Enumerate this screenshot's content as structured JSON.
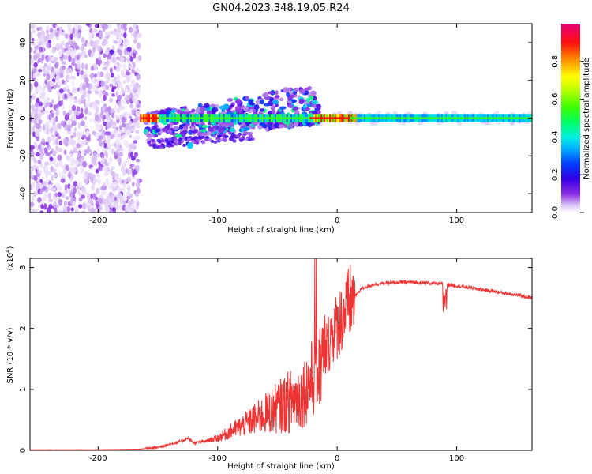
{
  "title": "GN04.2023.348.19.05.R24",
  "chart_data": [
    {
      "type": "heatmap",
      "title": "GN04.2023.348.19.05.R24",
      "xlabel": "Height of straight line (km)",
      "ylabel": "Frequency (Hz)",
      "xlim": [
        -257,
        163
      ],
      "ylim": [
        -50,
        50
      ],
      "x_ticks": [
        -200,
        -100,
        0,
        100
      ],
      "y_ticks": [
        -40,
        -20,
        0,
        20,
        40
      ],
      "grid": false,
      "colorbar": {
        "label": "Normalized spectral amplitude",
        "range": [
          0,
          1
        ],
        "ticks": [
          "0.0",
          "0.2",
          "0.4",
          "0.6",
          "0.8"
        ],
        "colormap": [
          "#ffffff",
          "#c9a6f0",
          "#8a2be2",
          "#3c00e6",
          "#0040ff",
          "#00d0ff",
          "#00ff80",
          "#40ff00",
          "#ffff00",
          "#ff8000",
          "#ff0000",
          "#e6007a"
        ]
      },
      "segments": [
        {
          "name": "noise",
          "x_range": [
            -257,
            -165
          ],
          "freq_range": [
            -50,
            50
          ],
          "amplitude": 0.1
        },
        {
          "name": "carrier",
          "x_range": [
            -165,
            163
          ],
          "freq": 0,
          "amplitude": 0.55
        },
        {
          "name": "turbulent",
          "x_range": [
            -160,
            -15
          ],
          "freq_range": [
            -17,
            20
          ],
          "amplitude": 0.3
        }
      ]
    },
    {
      "type": "line",
      "xlabel": "Height of straight line (km)",
      "ylabel": "SNR (10 * v/v)",
      "multiplier": "(x10^4)",
      "xlim": [
        -257,
        163
      ],
      "ylim": [
        0,
        3.15
      ],
      "x_ticks": [
        -200,
        -100,
        0,
        100
      ],
      "y_ticks": [
        0,
        1,
        2,
        3
      ],
      "grid": false,
      "color": "#ee3333",
      "x": [
        -257,
        -200,
        -165,
        -150,
        -140,
        -130,
        -125,
        -120,
        -110,
        -100,
        -90,
        -80,
        -70,
        -60,
        -50,
        -40,
        -30,
        -25,
        -20,
        -15,
        -10,
        -5,
        0,
        10,
        20,
        30,
        40,
        50,
        60,
        70,
        80,
        90,
        100,
        110,
        120,
        130,
        140,
        150,
        163
      ],
      "values": [
        0.01,
        0.01,
        0.02,
        0.05,
        0.1,
        0.15,
        0.2,
        0.12,
        0.15,
        0.2,
        0.3,
        0.4,
        0.5,
        0.6,
        0.7,
        0.8,
        0.9,
        1.05,
        1.2,
        1.35,
        1.6,
        1.9,
        2.05,
        2.4,
        2.65,
        2.72,
        2.74,
        2.75,
        2.76,
        2.75,
        2.74,
        2.73,
        2.7,
        2.67,
        2.64,
        2.61,
        2.58,
        2.55,
        2.5
      ]
    }
  ]
}
